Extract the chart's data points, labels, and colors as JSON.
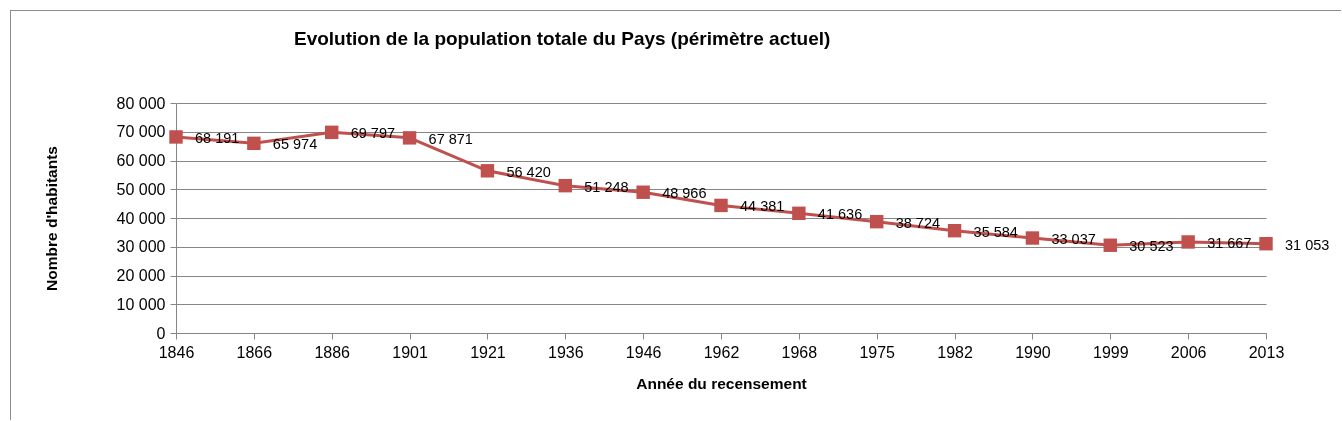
{
  "chart_data": {
    "type": "line",
    "title": "Evolution de la population totale du Pays (périmètre actuel)",
    "xlabel": "Année du recensement",
    "ylabel": "Nombre d'habitants",
    "categories": [
      "1846",
      "1866",
      "1886",
      "1901",
      "1921",
      "1936",
      "1946",
      "1962",
      "1968",
      "1975",
      "1982",
      "1990",
      "1999",
      "2006",
      "2013"
    ],
    "series": [
      {
        "color": "#c0504d",
        "values": [
          68191,
          65974,
          69797,
          67871,
          56420,
          51248,
          48966,
          44381,
          41636,
          38724,
          35584,
          33037,
          30523,
          31667,
          31053
        ],
        "value_labels": [
          "68 191",
          "65 974",
          "69 797",
          "67 871",
          "56 420",
          "51 248",
          "48 966",
          "44 381",
          "41 636",
          "38 724",
          "35 584",
          "33 037",
          "30 523",
          "31 667",
          "31 053"
        ]
      }
    ],
    "ylim": [
      0,
      80000
    ],
    "yticks": [
      0,
      {
        "value": 10000,
        "label": "10 000"
      },
      {
        "value": 20000,
        "label": "20 000"
      },
      {
        "value": 30000,
        "label": "30 000"
      },
      {
        "value": 40000,
        "label": "40 000"
      },
      {
        "value": 50000,
        "label": "50 000"
      },
      {
        "value": 60000,
        "label": "60 000"
      },
      {
        "value": 70000,
        "label": "70 000"
      },
      {
        "value": 80000,
        "label": "80 000"
      }
    ],
    "grid": "y",
    "marker": "square",
    "line_style": "solid"
  }
}
